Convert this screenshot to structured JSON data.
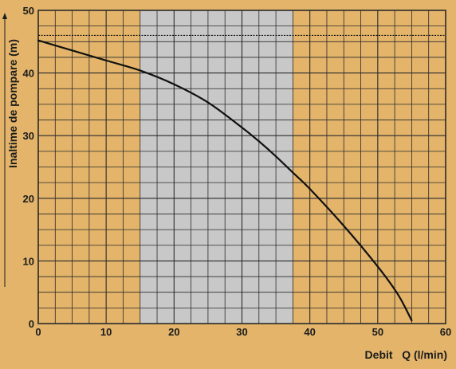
{
  "chart_data": {
    "type": "line",
    "title": "",
    "xlabel": "Debit   Q (l/min)",
    "ylabel": "Inaltime de pompare (m)",
    "xlim": [
      0,
      60
    ],
    "ylim": [
      0,
      50
    ],
    "xticks": [
      0,
      10,
      20,
      30,
      40,
      50,
      60
    ],
    "yticks": [
      0,
      10,
      20,
      30,
      40,
      50
    ],
    "x_minor_step": 2.5,
    "y_minor_step": 2.5,
    "grid": true,
    "shaded_band_x": [
      15,
      37.5
    ],
    "reference_line_y": 46,
    "series": [
      {
        "x": [
          0,
          5,
          10,
          15,
          20,
          25,
          30,
          32.5,
          35,
          37.5,
          40,
          45,
          50,
          53,
          55
        ],
        "y": [
          45.2,
          43.6,
          42,
          40.4,
          38.2,
          35.3,
          31.3,
          29.1,
          26.7,
          24.1,
          21.5,
          15.6,
          9.1,
          4.6,
          0.5
        ]
      }
    ]
  },
  "colors": {
    "background": "#e3b46a",
    "plot_area": "#e3b46a",
    "band": "#c8c8c8",
    "grid": "#2a2a2a",
    "curve": "#111111",
    "text": "#1c1c1c"
  }
}
